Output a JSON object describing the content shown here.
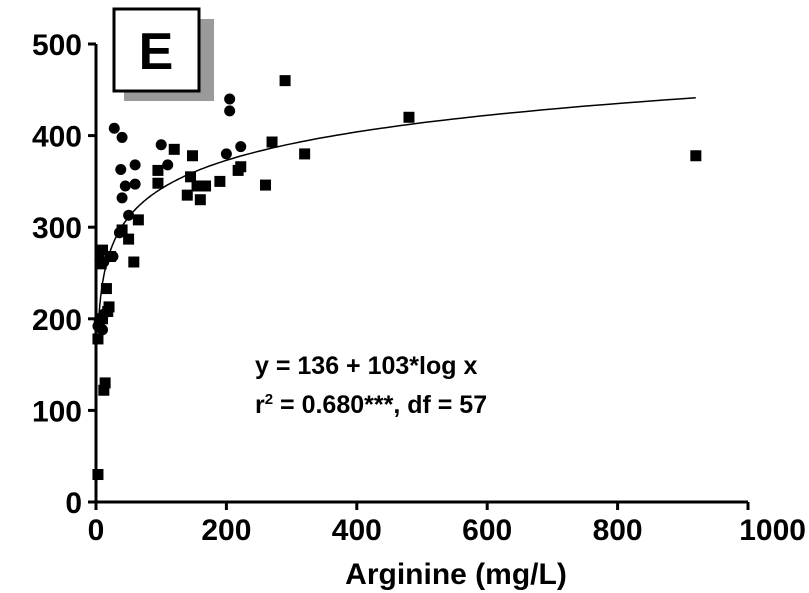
{
  "chart_data": {
    "type": "scatter",
    "panel_label": "E",
    "title": "",
    "xlabel": "Arginine (mg/L)",
    "ylabel": "",
    "xlim": [
      0,
      1000
    ],
    "ylim": [
      0,
      500
    ],
    "x_ticks": [
      0,
      200,
      400,
      600,
      800,
      1000
    ],
    "y_ticks": [
      0,
      100,
      200,
      300,
      400,
      500
    ],
    "grid": false,
    "legend": "none",
    "annotation": {
      "equation": "y = 136 + 103*log x",
      "stats_prefix": "r",
      "stats_exponent": "2",
      "stats_suffix": " = 0.680***, df = 57"
    },
    "fit": {
      "label": "y = 136 + 103*log x",
      "intercept": 136,
      "slope": 103,
      "x_start": 3,
      "x_end": 920
    },
    "series": [
      {
        "marker": "circle",
        "points": [
          [
            28,
            408
          ],
          [
            40,
            398
          ],
          [
            38,
            363
          ],
          [
            45,
            345
          ],
          [
            40,
            332
          ],
          [
            60,
            368
          ],
          [
            60,
            347
          ],
          [
            100,
            390
          ],
          [
            110,
            368
          ],
          [
            205,
            440
          ],
          [
            205,
            427
          ],
          [
            200,
            380
          ],
          [
            222,
            388
          ],
          [
            50,
            313
          ],
          [
            36,
            294
          ],
          [
            12,
            262
          ],
          [
            26,
            268
          ],
          [
            6,
            265
          ],
          [
            12,
            205
          ],
          [
            10,
            188
          ],
          [
            3,
            192
          ]
        ]
      },
      {
        "marker": "square",
        "points": [
          [
            3,
            30
          ],
          [
            3,
            178
          ],
          [
            5,
            195
          ],
          [
            8,
            260
          ],
          [
            10,
            275
          ],
          [
            10,
            200
          ],
          [
            12,
            122
          ],
          [
            14,
            130
          ],
          [
            16,
            233
          ],
          [
            18,
            208
          ],
          [
            20,
            213
          ],
          [
            22,
            268
          ],
          [
            40,
            297
          ],
          [
            50,
            287
          ],
          [
            58,
            262
          ],
          [
            65,
            308
          ],
          [
            95,
            362
          ],
          [
            95,
            348
          ],
          [
            120,
            385
          ],
          [
            140,
            335
          ],
          [
            145,
            355
          ],
          [
            148,
            378
          ],
          [
            155,
            345
          ],
          [
            160,
            330
          ],
          [
            168,
            345
          ],
          [
            190,
            350
          ],
          [
            218,
            362
          ],
          [
            222,
            366
          ],
          [
            260,
            346
          ],
          [
            270,
            393
          ],
          [
            290,
            460
          ],
          [
            320,
            380
          ],
          [
            480,
            420
          ],
          [
            920,
            378
          ]
        ]
      }
    ]
  }
}
